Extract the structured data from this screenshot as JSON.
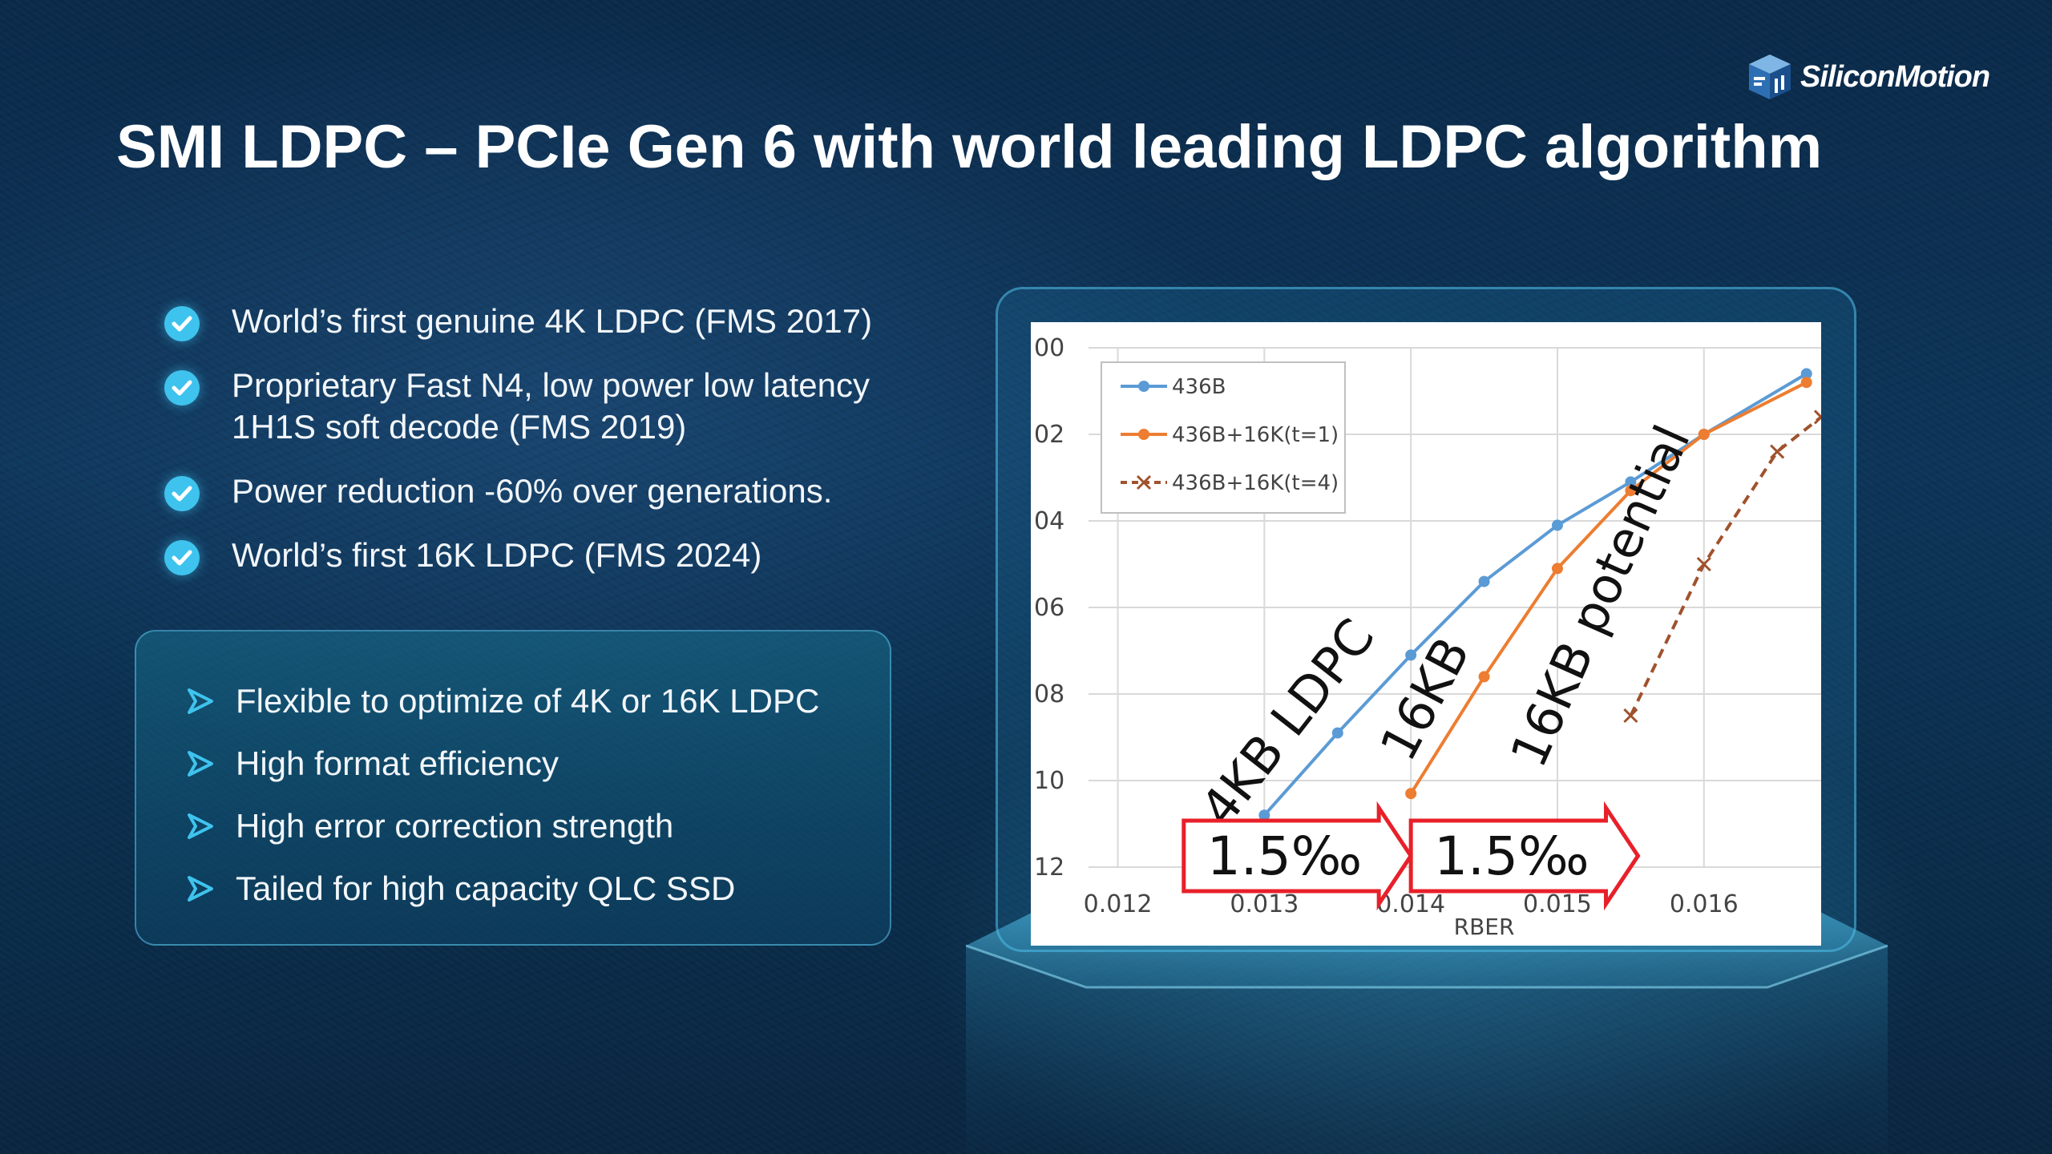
{
  "brand": {
    "logo_text": "SiliconMotion"
  },
  "slide": {
    "title": "SMI LDPC – PCIe Gen 6 with world leading LDPC algorithm"
  },
  "highlights": [
    {
      "text": "World’s first genuine 4K LDPC (FMS 2017)"
    },
    {
      "text": "Proprietary Fast N4, low power low latency\n1H1S soft decode (FMS 2019)"
    },
    {
      "text": "Power reduction -60% over generations."
    },
    {
      "text": "World’s first 16K LDPC (FMS 2024)"
    }
  ],
  "features": [
    {
      "text": "Flexible to optimize of 4K or 16K LDPC"
    },
    {
      "text": "High format efficiency"
    },
    {
      "text": "High error correction strength"
    },
    {
      "text": "Tailed for high capacity QLC SSD"
    }
  ],
  "colors": {
    "accent": "#3ec3ee",
    "s436b": "#5b9bd5",
    "s16k1": "#ed7d31",
    "s16k4": "#a0522d",
    "annotation_red": "#e8202a"
  },
  "chart_data": {
    "type": "line",
    "xlabel": "RBER",
    "ylabel": "",
    "x_ticks": [
      "0.012",
      "0.013",
      "0.014",
      "0.015",
      "0.016"
    ],
    "y_ticks": [
      "00",
      "02",
      "04",
      "06",
      "08",
      "10",
      "12"
    ],
    "xlim": [
      0.0118,
      0.0168
    ],
    "ylim": [
      0,
      12
    ],
    "grid": true,
    "legend_position": "top-left",
    "series": [
      {
        "name": "436B",
        "x": [
          0.013,
          0.0135,
          0.014,
          0.0145,
          0.015,
          0.0155,
          0.016,
          0.0167
        ],
        "y": [
          10.8,
          8.9,
          7.1,
          5.4,
          4.1,
          3.1,
          2.0,
          0.6
        ]
      },
      {
        "name": "436B+16K(t=1)",
        "x": [
          0.014,
          0.0145,
          0.015,
          0.0155,
          0.016,
          0.0167
        ],
        "y": [
          10.3,
          7.6,
          5.1,
          3.3,
          2.0,
          0.8
        ]
      },
      {
        "name": "436B+16K(t=4)",
        "x": [
          0.0155,
          0.016,
          0.0165,
          0.0168
        ],
        "y": [
          8.5,
          5.0,
          2.4,
          1.6
        ]
      }
    ],
    "annotations": [
      {
        "text": "4KB LDPC"
      },
      {
        "text": "16KB"
      },
      {
        "text": "16KB potential"
      },
      {
        "text": "1.5‰"
      },
      {
        "text": "1.5‰"
      }
    ]
  }
}
